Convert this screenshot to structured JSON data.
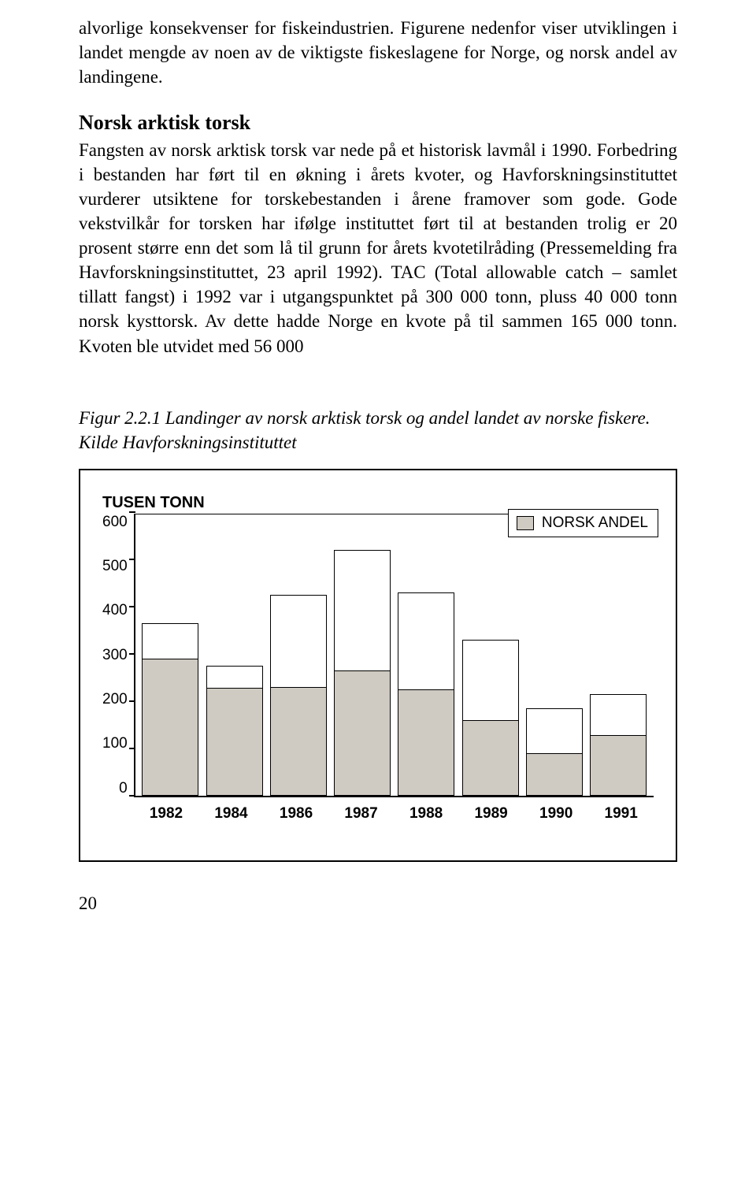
{
  "intro_text": "alvorlige konsekvenser for fiskeindustrien. Figurene nedenfor viser utviklingen i landet mengde av noen av de viktigste fiskeslagene for Norge, og norsk andel av landingene.",
  "section": {
    "heading": "Norsk arktisk torsk",
    "body": "Fangsten av norsk arktisk torsk var nede på et historisk lavmål i 1990. Forbedring i bestanden har ført til en økning i årets kvoter, og Havforskningsinstituttet vurderer utsiktene for torskebestanden i årene framover som gode. Gode vekstvilkår for torsken har ifølge instituttet ført til at bestanden trolig er 20 prosent større enn det som lå til grunn for årets kvotetilråding (Pressemelding fra Havforskningsinstituttet, 23 april 1992). TAC (Total allowable catch – samlet tillatt fangst) i 1992 var i utgangspunktet på 300 000 tonn, pluss 40 000 tonn norsk kysttorsk. Av dette hadde Norge en kvote på til sammen 165 000 tonn. Kvoten ble utvidet med 56 000"
  },
  "figure_caption": "Figur 2.2.1 Landinger av norsk arktisk torsk og andel landet av norske fiskere. Kilde Havforskningsinstituttet",
  "chart": {
    "y_title": "TUSEN TONN",
    "ymax": 600,
    "ytick_step": 100,
    "yticks": [
      "600",
      "500",
      "400",
      "300",
      "200",
      "100",
      "0"
    ],
    "legend_label": "NORSK ANDEL",
    "legend_fill": "#cfcac2",
    "bar_fill_top": "#ffffff",
    "bar_fill_bottom": "#cfcac2",
    "categories": [
      "1982",
      "1984",
      "1986",
      "1987",
      "1988",
      "1989",
      "1990",
      "1991"
    ],
    "totals": [
      365,
      275,
      425,
      520,
      430,
      330,
      185,
      215
    ],
    "norsk": [
      290,
      228,
      230,
      265,
      225,
      160,
      90,
      128
    ]
  },
  "page_number": "20"
}
